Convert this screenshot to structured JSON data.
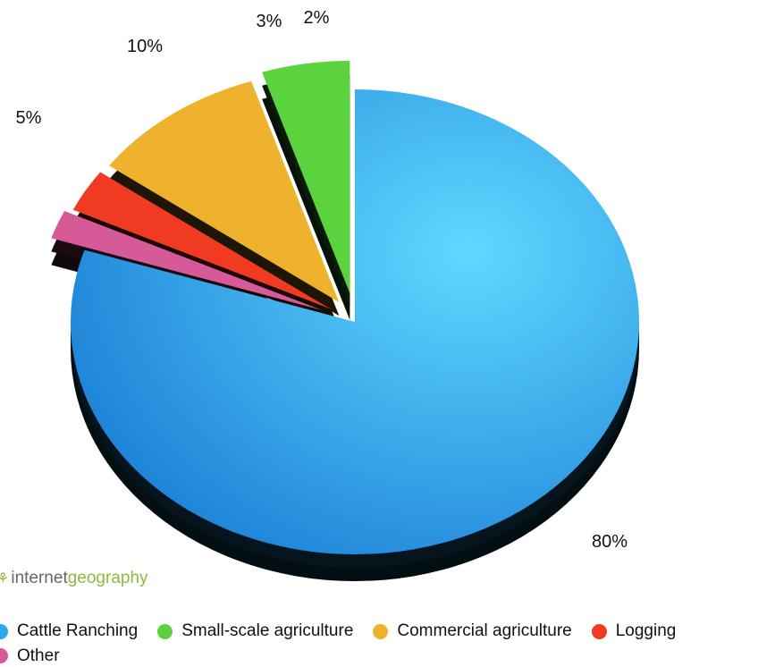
{
  "chart_data": {
    "type": "pie",
    "title": "",
    "categories": [
      "Cattle Ranching",
      "Small-scale agriculture",
      "Commercial agriculture",
      "Logging",
      "Other"
    ],
    "values": [
      80,
      5,
      10,
      3,
      2
    ],
    "labels": [
      "80%",
      "5%",
      "10%",
      "3%",
      "2%"
    ],
    "colors": [
      "#2aa9f0",
      "#5ad33f",
      "#efb22c",
      "#f03a22",
      "#d65a98"
    ],
    "legend_position": "bottom",
    "exploded": [
      false,
      true,
      true,
      true,
      true
    ],
    "style": "3d"
  },
  "watermark": {
    "part1": "internet",
    "part2": "geography"
  }
}
